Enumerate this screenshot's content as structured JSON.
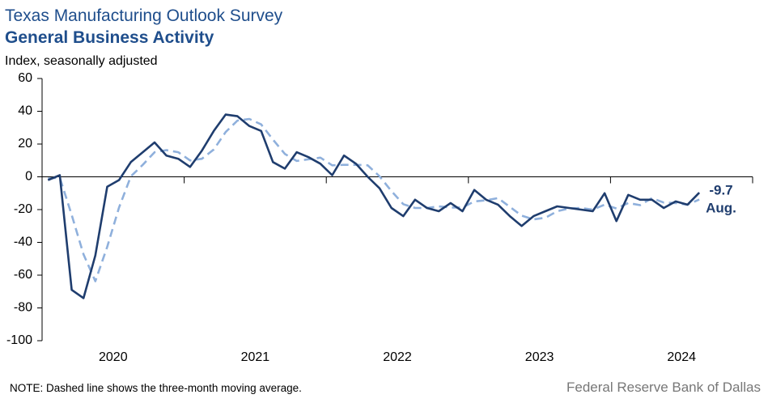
{
  "chart_data": {
    "type": "line",
    "title": "Texas Manufacturing Outlook Survey",
    "subtitle": "General Business Activity",
    "y_label": "Index, seasonally adjusted",
    "note": "NOTE: Dashed line shows the three-month  moving average.",
    "source": "Federal Reserve Bank of Dallas",
    "annotation": "Aug.",
    "x": [
      2020,
      2020.083,
      2020.167,
      2020.25,
      2020.333,
      2020.417,
      2020.5,
      2020.583,
      2020.667,
      2020.75,
      2020.833,
      2020.917,
      2021,
      2021.083,
      2021.167,
      2021.25,
      2021.333,
      2021.417,
      2021.5,
      2021.583,
      2021.667,
      2021.75,
      2021.833,
      2021.917,
      2022,
      2022.083,
      2022.167,
      2022.25,
      2022.333,
      2022.417,
      2022.5,
      2022.583,
      2022.667,
      2022.75,
      2022.833,
      2022.917,
      2023,
      2023.083,
      2023.167,
      2023.25,
      2023.333,
      2023.417,
      2023.5,
      2023.583,
      2023.667,
      2023.75,
      2023.833,
      2023.917,
      2024,
      2024.083,
      2024.167,
      2024.25,
      2024.333,
      2024.417,
      2024.5,
      2024.583
    ],
    "series": [
      {
        "color": "#1f3d6e",
        "style": "solid",
        "values": [
          -2,
          1,
          -69,
          -74,
          -48,
          -6,
          -2,
          9,
          15,
          21,
          13,
          11,
          6,
          16,
          28,
          38,
          37,
          31,
          28,
          9,
          5,
          15,
          12,
          8,
          1,
          13,
          8,
          0,
          -7,
          -19,
          -24,
          -14,
          -19,
          -21,
          -16,
          -21,
          -8,
          -14,
          -17,
          -24,
          -30,
          -24,
          -21,
          -18,
          -19,
          -20,
          -21,
          -10,
          -27,
          -11,
          -14,
          -14,
          -19,
          -15,
          -17,
          -9.7
        ]
      },
      {
        "color": "#8fb0dc",
        "style": "dashed",
        "values": [
          -1,
          -0.5,
          -23.3,
          -47.3,
          -63.7,
          -42.7,
          -18.7,
          0.3,
          7.3,
          15,
          16.3,
          15,
          10,
          11,
          16.7,
          27.3,
          34.3,
          35.3,
          32,
          22.7,
          14,
          9.7,
          10.7,
          11.7,
          7,
          7.3,
          7.3,
          7,
          0.3,
          -8.7,
          -16.7,
          -19,
          -19,
          -18,
          -18.7,
          -18.7,
          -15,
          -14.3,
          -13,
          -18.3,
          -23.7,
          -26,
          -25,
          -21,
          -19.3,
          -19,
          -20,
          -17,
          -19.3,
          -16,
          -17.3,
          -13,
          -15.7,
          -16,
          -17,
          -13.9
        ]
      }
    ],
    "xlim": [
      2020,
      2025
    ],
    "xticks": [
      2020,
      2021,
      2022,
      2023,
      2024
    ],
    "ylim": [
      -100,
      60
    ],
    "yticks": [
      60,
      40,
      20,
      0,
      -20,
      -40,
      -60,
      -80,
      -100
    ],
    "grid": false
  }
}
